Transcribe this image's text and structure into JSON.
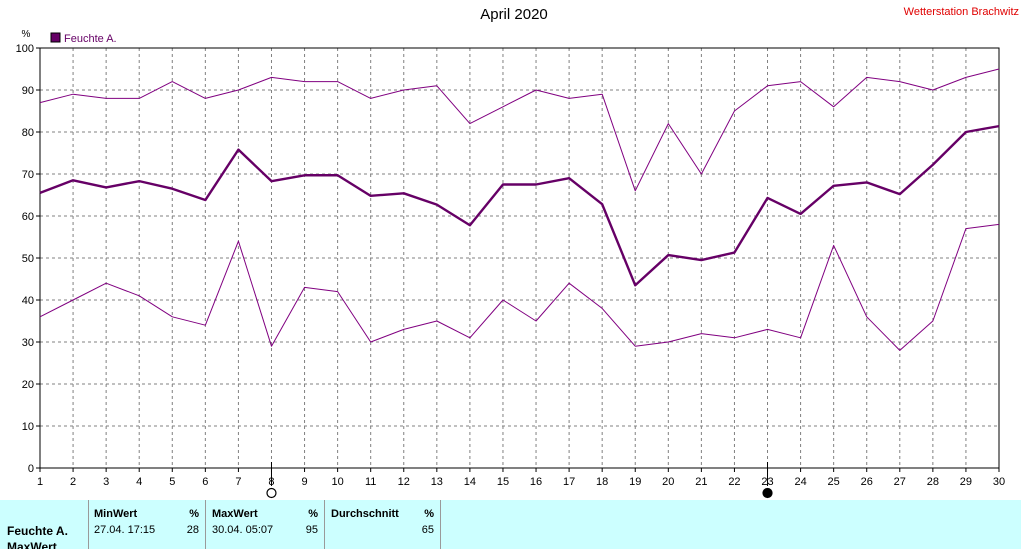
{
  "header": {
    "title": "April 2020",
    "station": "Wetterstation Brachwitz"
  },
  "chart_data": {
    "type": "line",
    "x": [
      1,
      2,
      3,
      4,
      5,
      6,
      7,
      8,
      9,
      10,
      11,
      12,
      13,
      14,
      15,
      16,
      17,
      18,
      19,
      20,
      21,
      22,
      23,
      24,
      25,
      26,
      27,
      28,
      29,
      30
    ],
    "ylim": [
      0,
      100
    ],
    "yticks": [
      0,
      10,
      20,
      30,
      40,
      50,
      60,
      70,
      80,
      90,
      100
    ],
    "ylabel": "%",
    "legend": "top-left",
    "grid": true,
    "series": [
      {
        "name": "Feuchte A.",
        "role": "average",
        "color": "#660066",
        "values": [
          65.5,
          68.5,
          66.8,
          68.3,
          66.5,
          63.8,
          75.8,
          68.3,
          69.7,
          69.7,
          64.8,
          65.4,
          62.7,
          57.8,
          67.5,
          67.5,
          69.0,
          62.8,
          43.5,
          50.7,
          49.5,
          51.3,
          64.3,
          60.5,
          67.2,
          68.0,
          65.2,
          72.2,
          80.0,
          81.4
        ]
      },
      {
        "role": "max",
        "color": "#800080",
        "values": [
          87,
          89,
          88,
          88,
          92,
          88,
          90,
          93,
          92,
          92,
          88,
          90,
          91,
          82,
          86,
          90,
          88,
          89,
          66,
          82,
          70,
          85,
          91,
          92,
          86,
          93,
          92,
          90,
          93,
          95
        ]
      },
      {
        "role": "min",
        "color": "#800080",
        "values": [
          36,
          40,
          44,
          41,
          36,
          34,
          54,
          29,
          43,
          42,
          30,
          33,
          35,
          31,
          40,
          35,
          44,
          38,
          29,
          30,
          32,
          31,
          33,
          31,
          53,
          36,
          28,
          35,
          57,
          58
        ]
      }
    ],
    "markers": [
      {
        "day": 8,
        "symbol": "hollow-circle",
        "meaning": "max"
      },
      {
        "day": 23,
        "symbol": "filled-circle",
        "meaning": "min"
      }
    ]
  },
  "stats_table": {
    "minwert": {
      "label": "MinWert",
      "unit": "%",
      "time": "27.04.  17:15",
      "value": "28"
    },
    "maxwert": {
      "label": "MaxWert",
      "unit": "%",
      "time": "30.04.  05:07",
      "value": "95"
    },
    "avg": {
      "label": "Durchschnitt",
      "unit": "%",
      "value": "65"
    },
    "row_labels": [
      "Feuchte A.",
      "MaxWert"
    ]
  },
  "colors": {
    "accent": "#660066",
    "panel": "#ccffff",
    "station": "#e00000"
  }
}
